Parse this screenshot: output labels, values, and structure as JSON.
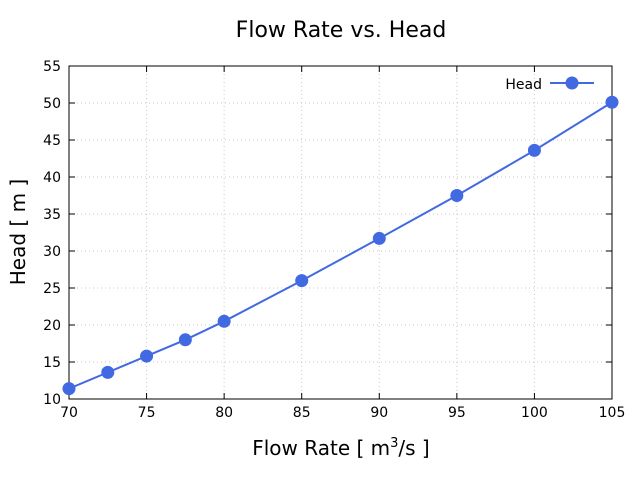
{
  "chart_data": {
    "type": "line",
    "title": "Flow Rate vs. Head",
    "xlabel_main": "Flow Rate [ m",
    "xlabel_sup": "3",
    "xlabel_tail": "/s ]",
    "ylabel": "Head [ m ]",
    "xlim": [
      70,
      105
    ],
    "ylim": [
      10,
      55
    ],
    "xticks": [
      70,
      75,
      80,
      85,
      90,
      95,
      100,
      105
    ],
    "yticks": [
      10,
      15,
      20,
      25,
      30,
      35,
      40,
      45,
      50,
      55
    ],
    "grid": true,
    "legend_position": "top-right",
    "series": [
      {
        "name": "Head",
        "color": "#4169e1",
        "marker": "circle",
        "x": [
          70,
          72.5,
          75,
          77.5,
          80,
          85,
          90,
          95,
          100,
          105
        ],
        "y": [
          11.4,
          13.6,
          15.8,
          18.0,
          20.5,
          26.0,
          31.7,
          37.5,
          43.6,
          50.1
        ]
      }
    ]
  }
}
